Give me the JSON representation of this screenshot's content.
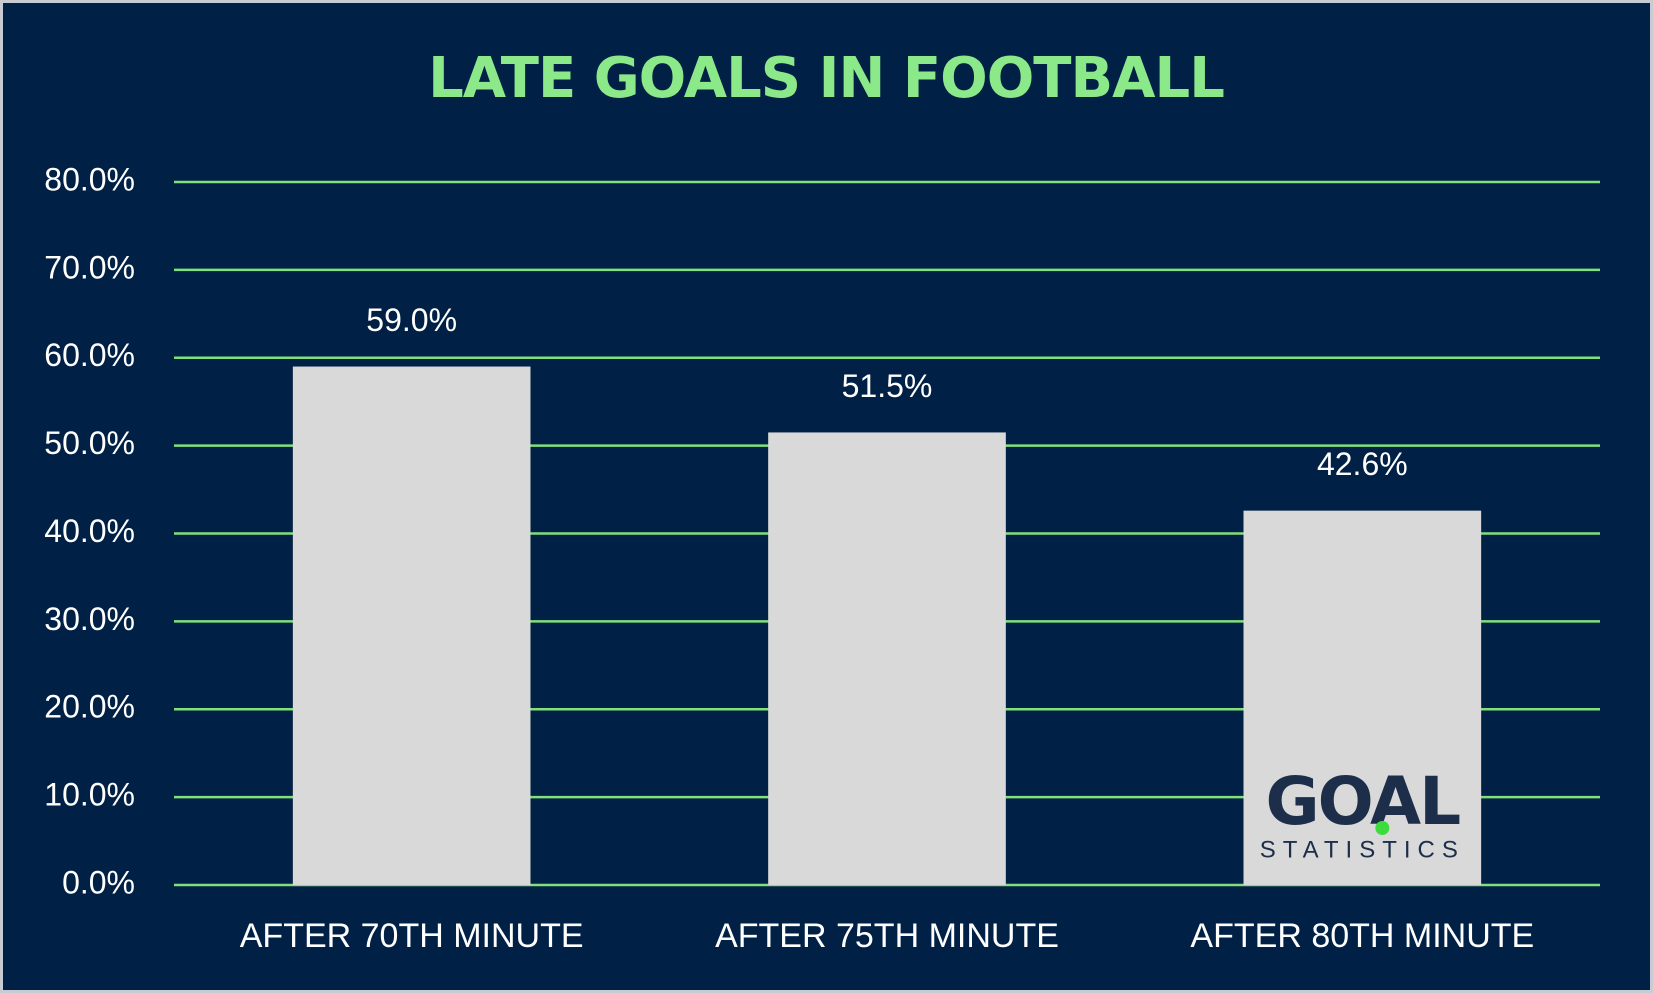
{
  "chart_data": {
    "type": "bar",
    "title": "LATE GOALS IN FOOTBALL",
    "categories": [
      "AFTER 70TH MINUTE",
      "AFTER 75TH MINUTE",
      "AFTER 80TH MINUTE"
    ],
    "values": [
      59.0,
      51.5,
      42.6
    ],
    "value_labels": [
      "59.0%",
      "51.5%",
      "42.6%"
    ],
    "color": "#d9d9d9",
    "ylim": [
      0,
      80
    ],
    "yticks": [
      {
        "value": 0,
        "label": "0.0%"
      },
      {
        "value": 10,
        "label": "10.0%"
      },
      {
        "value": 20,
        "label": "20.0%"
      },
      {
        "value": 30,
        "label": "30.0%"
      },
      {
        "value": 40,
        "label": "40.0%"
      },
      {
        "value": 50,
        "label": "50.0%"
      },
      {
        "value": 60,
        "label": "60.0%"
      },
      {
        "value": 70,
        "label": "70.0%"
      },
      {
        "value": 80,
        "label": "80.0%"
      }
    ],
    "grid": true,
    "grid_color": "#7fe07c",
    "watermark": "GOAL",
    "watermark_subtitle": "STATISTICS"
  }
}
